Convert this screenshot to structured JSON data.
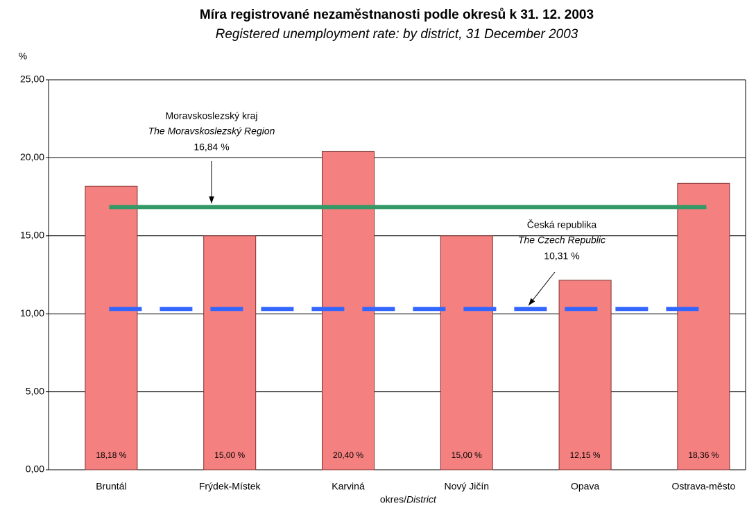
{
  "chart_data": {
    "type": "bar",
    "title": "Míra registrované nezaměstnanosti podle okresů k 31. 12. 2003",
    "subtitle": "Registered unemployment rate: by district, 31 December 2003",
    "y_label": "%",
    "x_label": "okres/",
    "x_label_en": "District",
    "categories": [
      "Bruntál",
      "Frýdek-Místek",
      "Karviná",
      "Nový Jičín",
      "Opava",
      "Ostrava-město"
    ],
    "values": [
      18.18,
      15.0,
      20.4,
      15.0,
      12.15,
      18.36
    ],
    "value_labels": [
      "18,18 %",
      "15,00 %",
      "20,40 %",
      "15,00 %",
      "12,15 %",
      "18,36 %"
    ],
    "color": "#f58080",
    "ylim": [
      0,
      25
    ],
    "yticks": [
      {
        "value": 0,
        "label": "0,00"
      },
      {
        "value": 5,
        "label": "5,00"
      },
      {
        "value": 10,
        "label": "10,00"
      },
      {
        "value": 15,
        "label": "15,00"
      },
      {
        "value": 20,
        "label": "20,00"
      },
      {
        "value": 25,
        "label": "25,00"
      }
    ],
    "grid": true,
    "reference_lines": [
      {
        "name": "Moravskoslezský kraj",
        "name_en": "The Moravskoslezský Region",
        "value": 16.84,
        "value_label": "16,84 %",
        "color": "#339966",
        "style": "solid"
      },
      {
        "name": "Česká republika",
        "name_en": "The Czech Republic",
        "value": 10.31,
        "value_label": "10,31 %",
        "color": "#3366ff",
        "style": "dashed"
      }
    ]
  }
}
